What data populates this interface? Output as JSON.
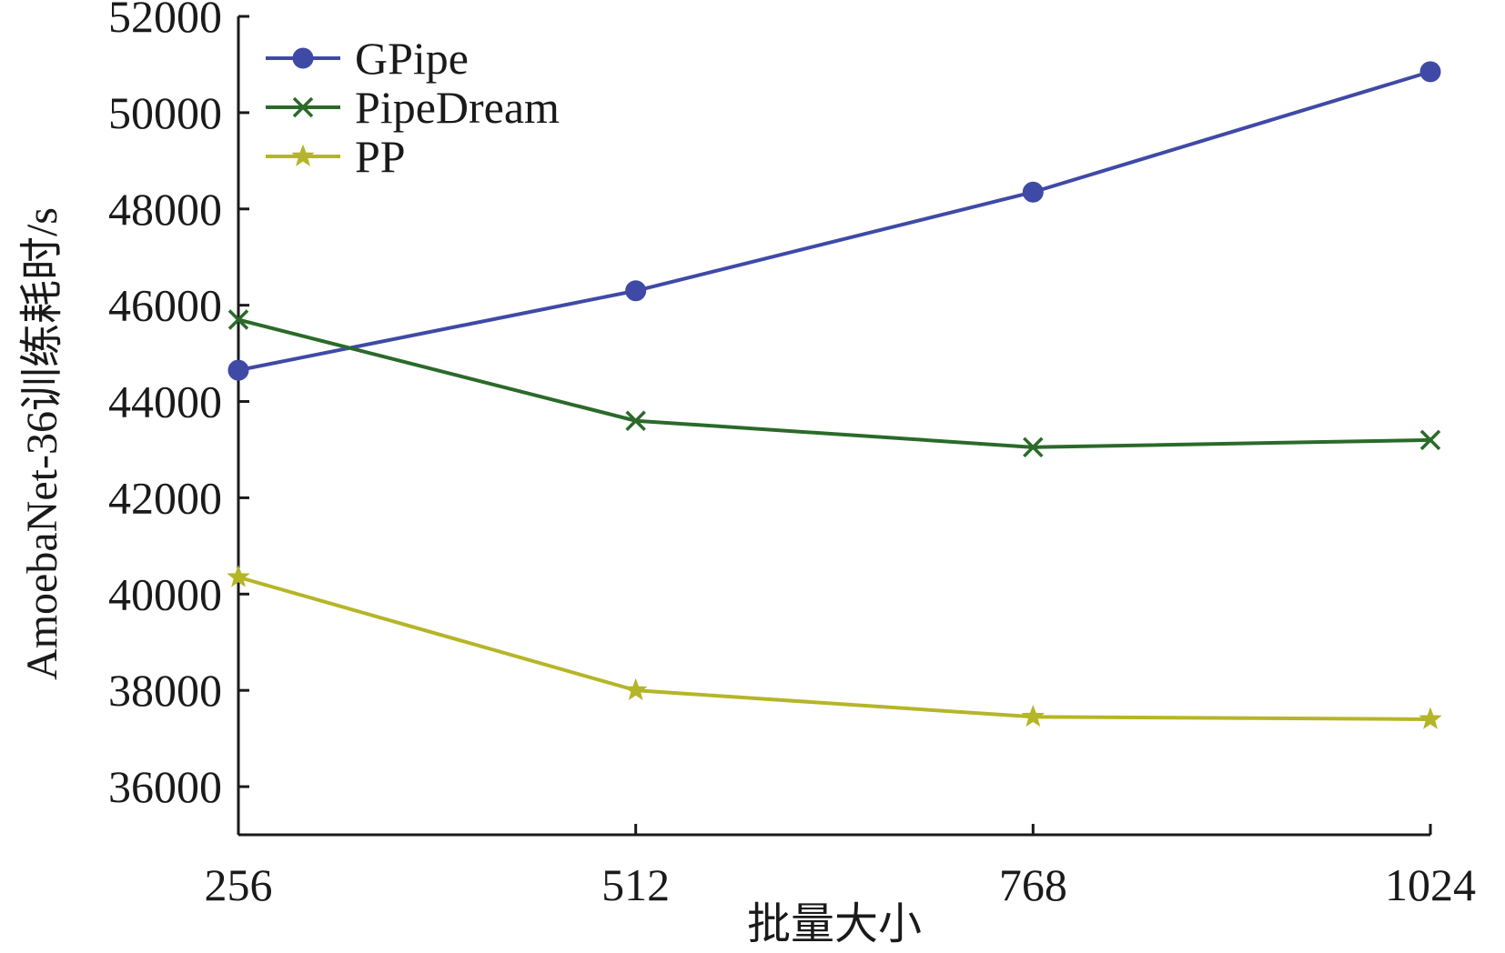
{
  "chart_data": {
    "type": "line",
    "x": [
      256,
      512,
      768,
      1024
    ],
    "xlabel": "批量大小",
    "ylabel": "AmoebaNet-36训练耗时/s",
    "xlim": [
      256,
      1024
    ],
    "ylim": [
      35000,
      52000
    ],
    "xticks": [
      256,
      512,
      768,
      1024
    ],
    "yticks": [
      36000,
      38000,
      40000,
      42000,
      44000,
      46000,
      48000,
      50000,
      52000
    ],
    "grid": false,
    "legend_position": "top-left",
    "series": [
      {
        "name": "GPipe",
        "color": "#3f4aa6",
        "marker": "circle",
        "values": [
          44650,
          46300,
          48350,
          50850
        ]
      },
      {
        "name": "PipeDream",
        "color": "#2a6a2a",
        "marker": "x",
        "values": [
          45700,
          43600,
          43050,
          43200
        ]
      },
      {
        "name": "PP",
        "color": "#b5b528",
        "marker": "star",
        "values": [
          40350,
          38000,
          37450,
          37400
        ]
      }
    ]
  }
}
